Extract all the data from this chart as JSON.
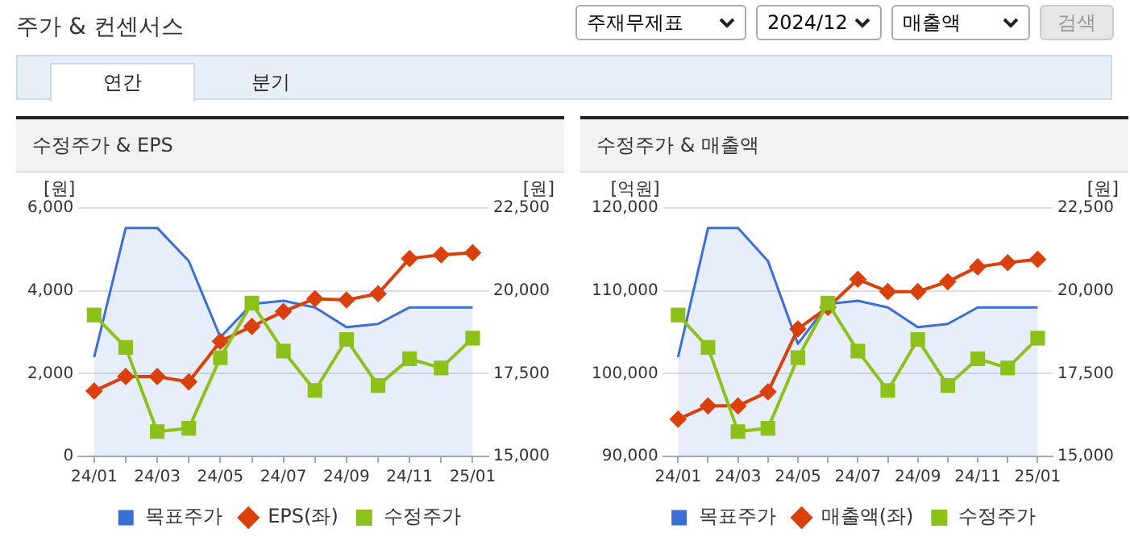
{
  "chart_data": [
    {
      "type": "other",
      "title": "주가 & 컨센서스",
      "annotations": [
        "주재무제표",
        "2024/12",
        "매출액",
        "검색",
        "연간",
        "분기"
      ]
    },
    {
      "type": "line",
      "title": "수정주가 & EPS",
      "ylabel": "[원]",
      "y2label": "[원]",
      "categories": [
        "24/01",
        null,
        "24/03",
        null,
        "24/05",
        null,
        "24/07",
        null,
        "24/09",
        null,
        "24/11",
        null,
        "25/01"
      ],
      "series": [
        {
          "name": "목표주가",
          "type": "area",
          "color": "#3b6fd6",
          "axis": "y2",
          "marker": "none",
          "values": [
            18000,
            21900,
            21900,
            20900,
            18600,
            19600,
            19700,
            19500,
            18900,
            19000,
            19500,
            19500,
            19500
          ]
        },
        {
          "name": "EPS(좌)",
          "type": "line",
          "color": "#d9400c",
          "marker": "diamond",
          "values": [
            1580,
            1930,
            1930,
            1800,
            2780,
            3140,
            3500,
            3810,
            3780,
            3930,
            4780,
            4870,
            4920
          ]
        },
        {
          "name": "수정주가",
          "type": "line",
          "color": "#8cc11a",
          "axis": "y2",
          "marker": "square",
          "values": [
            19270,
            18290,
            15750,
            15850,
            17980,
            19630,
            18180,
            16990,
            18530,
            17140,
            17950,
            17670,
            18570
          ]
        }
      ],
      "ylim": [
        0,
        6000
      ],
      "yticks": [
        0,
        {
          "value": 2000,
          "label": "2,000"
        },
        {
          "value": 4000,
          "label": "4,000"
        },
        {
          "value": 6000,
          "label": "6,000"
        }
      ],
      "y2lim": [
        15000,
        22500
      ],
      "y2ticks": [
        {
          "value": 15000,
          "label": "15,000"
        },
        {
          "value": 17500,
          "label": "17,500"
        },
        {
          "value": 20000,
          "label": "20,000"
        },
        {
          "value": 22500,
          "label": "22,500"
        }
      ],
      "grid": "y",
      "legend": "bottom"
    },
    {
      "type": "line",
      "title": "수정주가 & 매출액",
      "ylabel": "[억원]",
      "y2label": "[원]",
      "categories": [
        "24/01",
        null,
        "24/03",
        null,
        "24/05",
        null,
        "24/07",
        null,
        "24/09",
        null,
        "24/11",
        null,
        "25/01"
      ],
      "series": [
        {
          "name": "목표주가",
          "type": "area",
          "color": "#3b6fd6",
          "axis": "y2",
          "marker": "none",
          "values": [
            18000,
            21900,
            21900,
            20900,
            18400,
            19600,
            19700,
            19500,
            18900,
            19000,
            19500,
            19500,
            19500
          ]
        },
        {
          "name": "매출액(좌)",
          "type": "line",
          "color": "#d9400c",
          "marker": "diamond",
          "values": [
            94500,
            96100,
            96100,
            97800,
            105400,
            108000,
            111400,
            109900,
            109900,
            111100,
            112900,
            113400,
            113800
          ]
        },
        {
          "name": "수정주가",
          "type": "line",
          "color": "#8cc11a",
          "axis": "y2",
          "marker": "square",
          "values": [
            19270,
            18290,
            15750,
            15850,
            17980,
            19630,
            18180,
            16990,
            18530,
            17140,
            17950,
            17670,
            18570
          ]
        }
      ],
      "ylim": [
        90000,
        120000
      ],
      "yticks": [
        {
          "value": 90000,
          "label": "90,000"
        },
        {
          "value": 100000,
          "label": "100,000"
        },
        {
          "value": 110000,
          "label": "110,000"
        },
        {
          "value": 120000,
          "label": "120,000"
        }
      ],
      "y2lim": [
        15000,
        22500
      ],
      "y2ticks": [
        {
          "value": 15000,
          "label": "15,000"
        },
        {
          "value": 17500,
          "label": "17,500"
        },
        {
          "value": 20000,
          "label": "20,000"
        },
        {
          "value": 22500,
          "label": "22,500"
        }
      ],
      "grid": "y",
      "legend": "bottom"
    }
  ]
}
